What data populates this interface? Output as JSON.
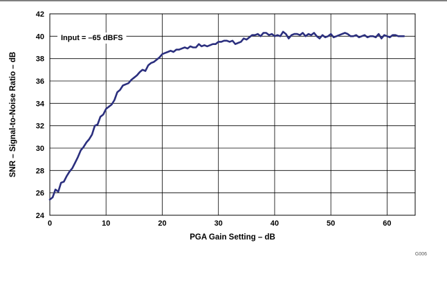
{
  "chart_data": {
    "type": "line",
    "xlabel": "PGA Gain Setting – dB",
    "ylabel": "SNR – Signal-to-Noise Ratio – dB",
    "xlim": [
      0,
      65
    ],
    "ylim": [
      24,
      42
    ],
    "xticks": [
      0,
      10,
      20,
      30,
      40,
      50,
      60
    ],
    "yticks": [
      24,
      26,
      28,
      30,
      32,
      34,
      36,
      38,
      40,
      42
    ],
    "grid": true,
    "annotation": "Input = –65 dBFS",
    "figure_code": "G006",
    "line_color": "#2b2f7e",
    "series": [
      {
        "x": [
          0,
          0.5,
          1,
          1.5,
          2,
          2.5,
          3,
          3.5,
          4,
          4.5,
          5,
          5.5,
          6,
          6.5,
          7,
          7.5,
          8,
          8.5,
          9,
          9.5,
          10,
          10.5,
          11,
          11.5,
          12,
          12.5,
          13,
          13.5,
          14,
          14.5,
          15,
          15.5,
          16,
          16.5,
          17,
          17.5,
          18,
          18.5,
          19,
          19.5,
          20,
          20.5,
          21,
          21.5,
          22,
          22.5,
          23,
          23.5,
          24,
          24.5,
          25,
          25.5,
          26,
          26.5,
          27,
          27.5,
          28,
          28.5,
          29,
          29.5,
          30,
          30.5,
          31,
          31.5,
          32,
          32.5,
          33,
          33.5,
          34,
          34.5,
          35,
          35.5,
          36,
          36.5,
          37,
          37.5,
          38,
          38.5,
          39,
          39.5,
          40,
          40.5,
          41,
          41.5,
          42,
          42.5,
          43,
          43.5,
          44,
          44.5,
          45,
          45.5,
          46,
          46.5,
          47,
          47.5,
          48,
          48.5,
          49,
          49.5,
          50,
          50.5,
          51,
          51.5,
          52,
          52.5,
          53,
          53.5,
          54,
          54.5,
          55,
          55.5,
          56,
          56.5,
          57,
          57.5,
          58,
          58.5,
          59,
          59.5,
          60,
          60.5,
          61,
          61.5,
          62,
          62.5,
          63
        ],
        "y": [
          25.4,
          25.6,
          26.3,
          26.1,
          26.9,
          27.0,
          27.5,
          27.9,
          28.2,
          28.7,
          29.2,
          29.8,
          30.1,
          30.5,
          30.8,
          31.2,
          32.0,
          32.1,
          32.8,
          33.0,
          33.5,
          33.7,
          33.9,
          34.3,
          35.0,
          35.2,
          35.6,
          35.7,
          35.8,
          36.1,
          36.3,
          36.5,
          36.8,
          37.0,
          36.9,
          37.4,
          37.6,
          37.7,
          37.9,
          38.1,
          38.4,
          38.5,
          38.6,
          38.7,
          38.6,
          38.8,
          38.8,
          38.9,
          39.0,
          38.9,
          39.1,
          39.0,
          39.0,
          39.3,
          39.1,
          39.2,
          39.1,
          39.2,
          39.3,
          39.3,
          39.5,
          39.5,
          39.6,
          39.6,
          39.5,
          39.6,
          39.3,
          39.4,
          39.5,
          39.8,
          39.7,
          39.9,
          40.1,
          40.1,
          40.2,
          40.0,
          40.3,
          40.3,
          40.1,
          40.2,
          40.0,
          40.1,
          40.0,
          40.4,
          40.2,
          39.8,
          40.1,
          40.2,
          40.2,
          40.1,
          40.3,
          40.0,
          40.2,
          40.1,
          40.3,
          40.0,
          39.8,
          40.1,
          39.9,
          40.0,
          40.2,
          39.9,
          40.0,
          40.1,
          40.2,
          40.3,
          40.2,
          40.0,
          40.0,
          40.1,
          39.9,
          40.0,
          40.1,
          39.9,
          40.0,
          40.0,
          39.9,
          40.2,
          39.8,
          40.1,
          40.0,
          39.9,
          40.1,
          40.1,
          40.0,
          40.0,
          40.0
        ]
      }
    ]
  }
}
